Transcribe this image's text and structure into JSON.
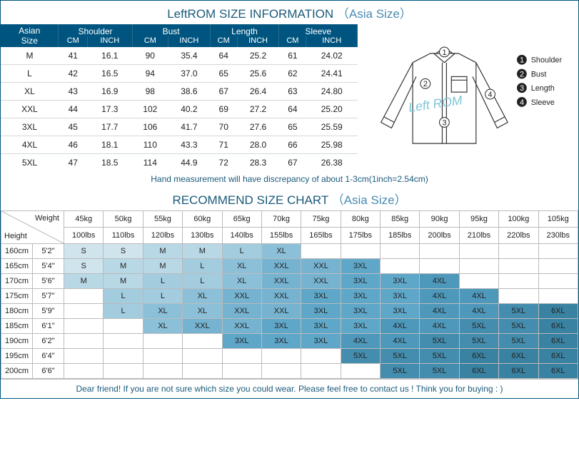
{
  "title1": {
    "main": "LeftROM SIZE INFORMATION",
    "paren": "（Asia Size）"
  },
  "title2": {
    "main": "RECOMMEND SIZE CHART",
    "paren": "（Asia Size）"
  },
  "note1": "Hand measurement will have discrepancy of about 1-3cm(1inch=2.54cm)",
  "note2": "Dear friend! If you are not sure which size you could wear. Please feel free to contact us ! Think you for buying : )",
  "sizeHeaders": {
    "asian": "Asian\nSize",
    "groups": [
      "Shoulder",
      "Bust",
      "Length",
      "Sleeve"
    ],
    "units": [
      "CM",
      "INCH",
      "CM",
      "INCH",
      "CM",
      "INCH",
      "CM",
      "INCH"
    ]
  },
  "sizeRows": [
    {
      "s": "M",
      "v": [
        "41",
        "16.1",
        "90",
        "35.4",
        "64",
        "25.2",
        "61",
        "24.02"
      ]
    },
    {
      "s": "L",
      "v": [
        "42",
        "16.5",
        "94",
        "37.0",
        "65",
        "25.6",
        "62",
        "24.41"
      ]
    },
    {
      "s": "XL",
      "v": [
        "43",
        "16.9",
        "98",
        "38.6",
        "67",
        "26.4",
        "63",
        "24.80"
      ]
    },
    {
      "s": "XXL",
      "v": [
        "44",
        "17.3",
        "102",
        "40.2",
        "69",
        "27.2",
        "64",
        "25.20"
      ]
    },
    {
      "s": "3XL",
      "v": [
        "45",
        "17.7",
        "106",
        "41.7",
        "70",
        "27.6",
        "65",
        "25.59"
      ]
    },
    {
      "s": "4XL",
      "v": [
        "46",
        "18.1",
        "110",
        "43.3",
        "71",
        "28.0",
        "66",
        "25.98"
      ]
    },
    {
      "s": "5XL",
      "v": [
        "47",
        "18.5",
        "114",
        "44.9",
        "72",
        "28.3",
        "67",
        "26.38"
      ]
    }
  ],
  "legend": [
    "Shoulder",
    "Bust",
    "Length",
    "Sleeve"
  ],
  "watermark": "Left ROM",
  "diagColors": {
    "line": "#333",
    "accent": "#7fc5d8",
    "text": "#222"
  },
  "recHead": {
    "weight": "Weight",
    "height": "Height",
    "kg": [
      "45kg",
      "50kg",
      "55kg",
      "60kg",
      "65kg",
      "70kg",
      "75kg",
      "80kg",
      "85kg",
      "90kg",
      "95kg",
      "100kg",
      "105kg"
    ],
    "lbs": [
      "100lbs",
      "110lbs",
      "120lbs",
      "130lbs",
      "140lbs",
      "155lbs",
      "165lbs",
      "175lbs",
      "185lbs",
      "200lbs",
      "210lbs",
      "220lbs",
      "230lbs"
    ]
  },
  "recRows": [
    {
      "cm": "160cm",
      "ft": "5'2\"",
      "c": [
        "S",
        "S",
        "M",
        "M",
        "L",
        "XL",
        "",
        "",
        "",
        "",
        "",
        "",
        ""
      ]
    },
    {
      "cm": "165cm",
      "ft": "5'4\"",
      "c": [
        "S",
        "M",
        "M",
        "L",
        "XL",
        "XXL",
        "XXL",
        "3XL",
        "",
        "",
        "",
        "",
        ""
      ]
    },
    {
      "cm": "170cm",
      "ft": "5'6\"",
      "c": [
        "M",
        "M",
        "L",
        "L",
        "XL",
        "XXL",
        "XXL",
        "3XL",
        "3XL",
        "4XL",
        "",
        "",
        ""
      ]
    },
    {
      "cm": "175cm",
      "ft": "5'7\"",
      "c": [
        "",
        "L",
        "L",
        "XL",
        "XXL",
        "XXL",
        "3XL",
        "3XL",
        "3XL",
        "4XL",
        "4XL",
        "",
        ""
      ]
    },
    {
      "cm": "180cm",
      "ft": "5'9\"",
      "c": [
        "",
        "L",
        "XL",
        "XL",
        "XXL",
        "XXL",
        "3XL",
        "3XL",
        "3XL",
        "4XL",
        "4XL",
        "5XL",
        "6XL"
      ]
    },
    {
      "cm": "185cm",
      "ft": "6'1\"",
      "c": [
        "",
        "",
        "XL",
        "XXL",
        "XXL",
        "3XL",
        "3XL",
        "3XL",
        "4XL",
        "4XL",
        "5XL",
        "5XL",
        "6XL"
      ]
    },
    {
      "cm": "190cm",
      "ft": "6'2\"",
      "c": [
        "",
        "",
        "",
        "",
        "3XL",
        "3XL",
        "3XL",
        "4XL",
        "4XL",
        "5XL",
        "5XL",
        "5XL",
        "6XL"
      ]
    },
    {
      "cm": "195cm",
      "ft": "6'4\"",
      "c": [
        "",
        "",
        "",
        "",
        "",
        "",
        "",
        "5XL",
        "5XL",
        "5XL",
        "6XL",
        "6XL",
        "6XL"
      ]
    },
    {
      "cm": "200cm",
      "ft": "6'6\"",
      "c": [
        "",
        "",
        "",
        "",
        "",
        "",
        "",
        "",
        "5XL",
        "5XL",
        "6XL",
        "6XL",
        "6XL"
      ]
    }
  ]
}
